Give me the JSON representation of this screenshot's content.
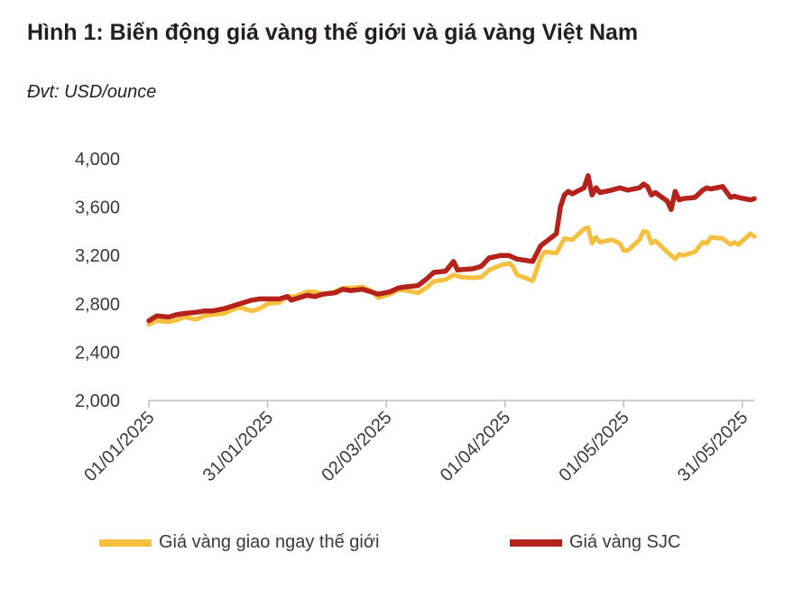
{
  "title": "Hình 1: Biến động giá vàng thế giới và giá vàng Việt Nam",
  "unit_label": "Đvt: USD/ounce",
  "colors": {
    "world": "#f5c040",
    "sjc": "#b5221c",
    "axis": "#bfbfbf"
  },
  "chart_data": {
    "type": "line",
    "title": "Hình 1: Biến động giá vàng thế giới và giá vàng Việt Nam",
    "ylabel": "Đvt: USD/ounce",
    "ylim": [
      2000,
      4000
    ],
    "xlim": [
      "2025-01-01",
      "2025-06-03"
    ],
    "yticks": [
      2000,
      2400,
      2800,
      3200,
      3600,
      4000
    ],
    "ytick_labels": [
      "2,000",
      "2,400",
      "2,800",
      "3,200",
      "3,600",
      "4,000"
    ],
    "xticks": [
      "2025-01-01",
      "2025-01-31",
      "2025-03-02",
      "2025-04-01",
      "2025-05-01",
      "2025-05-31"
    ],
    "xtick_labels": [
      "01/01/2025",
      "31/01/2025",
      "02/03/2025",
      "01/04/2025",
      "01/05/2025",
      "31/05/2025"
    ],
    "grid": false,
    "legend_position": "bottom",
    "series": [
      {
        "name": "Giá vàng giao ngay thế giới",
        "color": "#f5c040",
        "points": [
          [
            "2025-01-01",
            2630
          ],
          [
            "2025-01-03",
            2660
          ],
          [
            "2025-01-06",
            2650
          ],
          [
            "2025-01-08",
            2665
          ],
          [
            "2025-01-10",
            2690
          ],
          [
            "2025-01-13",
            2670
          ],
          [
            "2025-01-15",
            2700
          ],
          [
            "2025-01-17",
            2710
          ],
          [
            "2025-01-20",
            2720
          ],
          [
            "2025-01-22",
            2750
          ],
          [
            "2025-01-24",
            2770
          ],
          [
            "2025-01-27",
            2740
          ],
          [
            "2025-01-29",
            2760
          ],
          [
            "2025-01-31",
            2800
          ],
          [
            "2025-02-03",
            2810
          ],
          [
            "2025-02-05",
            2860
          ],
          [
            "2025-02-07",
            2860
          ],
          [
            "2025-02-10",
            2900
          ],
          [
            "2025-02-12",
            2900
          ],
          [
            "2025-02-14",
            2880
          ],
          [
            "2025-02-17",
            2900
          ],
          [
            "2025-02-19",
            2930
          ],
          [
            "2025-02-21",
            2930
          ],
          [
            "2025-02-24",
            2940
          ],
          [
            "2025-02-26",
            2910
          ],
          [
            "2025-02-28",
            2850
          ],
          [
            "2025-03-03",
            2880
          ],
          [
            "2025-03-05",
            2915
          ],
          [
            "2025-03-07",
            2910
          ],
          [
            "2025-03-10",
            2890
          ],
          [
            "2025-03-12",
            2930
          ],
          [
            "2025-03-14",
            2985
          ],
          [
            "2025-03-17",
            3000
          ],
          [
            "2025-03-19",
            3040
          ],
          [
            "2025-03-21",
            3020
          ],
          [
            "2025-03-24",
            3015
          ],
          [
            "2025-03-26",
            3020
          ],
          [
            "2025-03-28",
            3080
          ],
          [
            "2025-03-31",
            3120
          ],
          [
            "2025-04-02",
            3135
          ],
          [
            "2025-04-03",
            3110
          ],
          [
            "2025-04-04",
            3040
          ],
          [
            "2025-04-08",
            2990
          ],
          [
            "2025-04-09",
            3080
          ],
          [
            "2025-04-10",
            3180
          ],
          [
            "2025-04-11",
            3230
          ],
          [
            "2025-04-14",
            3220
          ],
          [
            "2025-04-16",
            3340
          ],
          [
            "2025-04-18",
            3330
          ],
          [
            "2025-04-21",
            3420
          ],
          [
            "2025-04-22",
            3430
          ],
          [
            "2025-04-23",
            3300
          ],
          [
            "2025-04-24",
            3350
          ],
          [
            "2025-04-25",
            3310
          ],
          [
            "2025-04-28",
            3330
          ],
          [
            "2025-04-30",
            3300
          ],
          [
            "2025-05-01",
            3240
          ],
          [
            "2025-05-02",
            3240
          ],
          [
            "2025-05-05",
            3330
          ],
          [
            "2025-05-06",
            3400
          ],
          [
            "2025-05-07",
            3390
          ],
          [
            "2025-05-08",
            3300
          ],
          [
            "2025-05-09",
            3320
          ],
          [
            "2025-05-12",
            3230
          ],
          [
            "2025-05-14",
            3170
          ],
          [
            "2025-05-15",
            3210
          ],
          [
            "2025-05-16",
            3200
          ],
          [
            "2025-05-19",
            3230
          ],
          [
            "2025-05-21",
            3310
          ],
          [
            "2025-05-22",
            3300
          ],
          [
            "2025-05-23",
            3350
          ],
          [
            "2025-05-26",
            3340
          ],
          [
            "2025-05-28",
            3290
          ],
          [
            "2025-05-29",
            3310
          ],
          [
            "2025-05-30",
            3290
          ],
          [
            "2025-06-02",
            3380
          ],
          [
            "2025-06-03",
            3355
          ]
        ]
      },
      {
        "name": "Giá vàng SJC",
        "color": "#b5221c",
        "points": [
          [
            "2025-01-01",
            2660
          ],
          [
            "2025-01-03",
            2700
          ],
          [
            "2025-01-06",
            2690
          ],
          [
            "2025-01-08",
            2710
          ],
          [
            "2025-01-10",
            2720
          ],
          [
            "2025-01-13",
            2730
          ],
          [
            "2025-01-15",
            2740
          ],
          [
            "2025-01-17",
            2740
          ],
          [
            "2025-01-20",
            2760
          ],
          [
            "2025-01-22",
            2780
          ],
          [
            "2025-01-24",
            2800
          ],
          [
            "2025-01-27",
            2830
          ],
          [
            "2025-01-29",
            2840
          ],
          [
            "2025-01-31",
            2840
          ],
          [
            "2025-02-03",
            2840
          ],
          [
            "2025-02-05",
            2860
          ],
          [
            "2025-02-06",
            2830
          ],
          [
            "2025-02-07",
            2840
          ],
          [
            "2025-02-10",
            2870
          ],
          [
            "2025-02-12",
            2860
          ],
          [
            "2025-02-14",
            2880
          ],
          [
            "2025-02-17",
            2890
          ],
          [
            "2025-02-19",
            2920
          ],
          [
            "2025-02-21",
            2910
          ],
          [
            "2025-02-24",
            2920
          ],
          [
            "2025-02-26",
            2900
          ],
          [
            "2025-02-28",
            2880
          ],
          [
            "2025-03-03",
            2900
          ],
          [
            "2025-03-05",
            2930
          ],
          [
            "2025-03-07",
            2940
          ],
          [
            "2025-03-10",
            2950
          ],
          [
            "2025-03-12",
            3000
          ],
          [
            "2025-03-14",
            3060
          ],
          [
            "2025-03-17",
            3070
          ],
          [
            "2025-03-19",
            3150
          ],
          [
            "2025-03-20",
            3080
          ],
          [
            "2025-03-24",
            3090
          ],
          [
            "2025-03-26",
            3110
          ],
          [
            "2025-03-28",
            3180
          ],
          [
            "2025-03-31",
            3200
          ],
          [
            "2025-04-02",
            3200
          ],
          [
            "2025-04-04",
            3170
          ],
          [
            "2025-04-08",
            3150
          ],
          [
            "2025-04-10",
            3280
          ],
          [
            "2025-04-14",
            3380
          ],
          [
            "2025-04-15",
            3600
          ],
          [
            "2025-04-16",
            3700
          ],
          [
            "2025-04-17",
            3730
          ],
          [
            "2025-04-18",
            3710
          ],
          [
            "2025-04-21",
            3760
          ],
          [
            "2025-04-22",
            3860
          ],
          [
            "2025-04-23",
            3700
          ],
          [
            "2025-04-24",
            3760
          ],
          [
            "2025-04-25",
            3720
          ],
          [
            "2025-04-28",
            3740
          ],
          [
            "2025-04-30",
            3760
          ],
          [
            "2025-05-01",
            3750
          ],
          [
            "2025-05-02",
            3740
          ],
          [
            "2025-05-05",
            3760
          ],
          [
            "2025-05-06",
            3790
          ],
          [
            "2025-05-07",
            3770
          ],
          [
            "2025-05-08",
            3700
          ],
          [
            "2025-05-09",
            3720
          ],
          [
            "2025-05-12",
            3650
          ],
          [
            "2025-05-13",
            3580
          ],
          [
            "2025-05-14",
            3730
          ],
          [
            "2025-05-15",
            3660
          ],
          [
            "2025-05-16",
            3670
          ],
          [
            "2025-05-19",
            3680
          ],
          [
            "2025-05-21",
            3740
          ],
          [
            "2025-05-22",
            3760
          ],
          [
            "2025-05-23",
            3750
          ],
          [
            "2025-05-26",
            3770
          ],
          [
            "2025-05-28",
            3680
          ],
          [
            "2025-05-29",
            3690
          ],
          [
            "2025-05-30",
            3680
          ],
          [
            "2025-06-02",
            3660
          ],
          [
            "2025-06-03",
            3670
          ]
        ]
      }
    ]
  }
}
